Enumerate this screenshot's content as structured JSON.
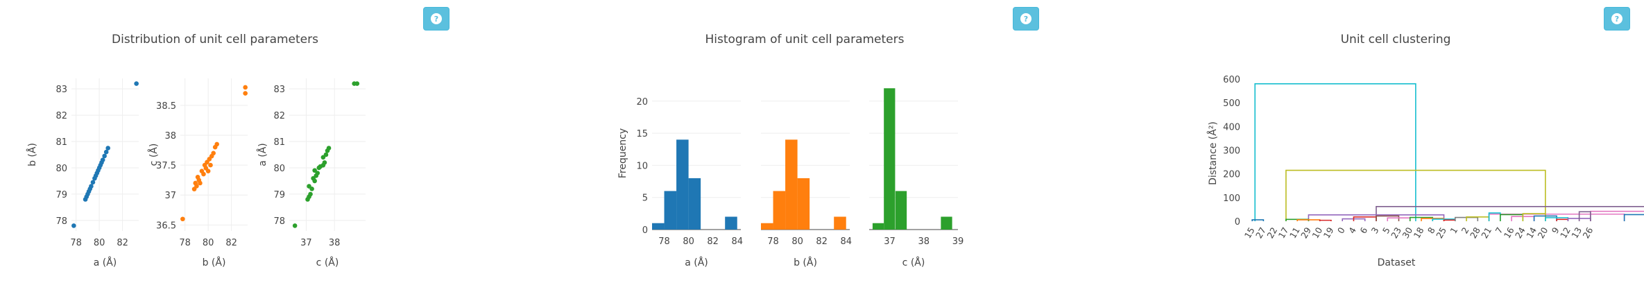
{
  "help_buttons": [
    {
      "icon": "question-circle-icon"
    },
    {
      "icon": "question-circle-icon"
    },
    {
      "icon": "question-circle-icon"
    }
  ],
  "colors": {
    "blue": "#1f77b4",
    "orange": "#ff7f0e",
    "green": "#2ca02c",
    "help_button": "#5bc0de"
  },
  "chart_data": [
    {
      "type": "scatter",
      "title": "Distribution of unit cell parameters",
      "panels": [
        {
          "name": "a-vs-b",
          "color": "#1f77b4",
          "xlabel": "a (Å)",
          "ylabel": "b (Å)",
          "xlim": [
            77.6,
            83.4
          ],
          "ylim": [
            77.6,
            83.4
          ],
          "xticks": [
            78,
            80,
            82
          ],
          "yticks": [
            78,
            79,
            80,
            81,
            82,
            83
          ],
          "points": [
            [
              77.8,
              77.8
            ],
            [
              78.8,
              78.8
            ],
            [
              78.9,
              78.9
            ],
            [
              79.0,
              79.0
            ],
            [
              79.1,
              79.1
            ],
            [
              79.2,
              79.2
            ],
            [
              79.3,
              79.3
            ],
            [
              79.45,
              79.45
            ],
            [
              79.6,
              79.6
            ],
            [
              79.7,
              79.7
            ],
            [
              79.8,
              79.8
            ],
            [
              79.9,
              79.9
            ],
            [
              80.0,
              80.0
            ],
            [
              80.1,
              80.1
            ],
            [
              80.2,
              80.2
            ],
            [
              80.3,
              80.3
            ],
            [
              80.45,
              80.45
            ],
            [
              80.6,
              80.6
            ],
            [
              80.75,
              80.75
            ],
            [
              83.2,
              83.2
            ]
          ]
        },
        {
          "name": "b-vs-c",
          "color": "#ff7f0e",
          "xlabel": "b (Å)",
          "ylabel": "c (Å)",
          "xlim": [
            77.6,
            83.4
          ],
          "ylim": [
            36.4,
            38.95
          ],
          "xticks": [
            78,
            80,
            82
          ],
          "yticks": [
            36.5,
            37,
            37.5,
            38,
            38.5
          ],
          "points": [
            [
              77.8,
              36.6
            ],
            [
              78.8,
              37.1
            ],
            [
              78.9,
              37.2
            ],
            [
              79.0,
              37.15
            ],
            [
              79.1,
              37.3
            ],
            [
              79.2,
              37.25
            ],
            [
              79.3,
              37.2
            ],
            [
              79.45,
              37.4
            ],
            [
              79.6,
              37.35
            ],
            [
              79.7,
              37.5
            ],
            [
              79.8,
              37.45
            ],
            [
              79.9,
              37.55
            ],
            [
              80.0,
              37.4
            ],
            [
              80.1,
              37.6
            ],
            [
              80.2,
              37.5
            ],
            [
              80.3,
              37.65
            ],
            [
              80.45,
              37.7
            ],
            [
              80.6,
              37.8
            ],
            [
              80.75,
              37.85
            ],
            [
              83.2,
              38.7
            ],
            [
              83.2,
              38.8
            ]
          ]
        },
        {
          "name": "c-vs-a",
          "color": "#2ca02c",
          "xlabel": "c (Å)",
          "ylabel": "a (Å)",
          "xlim": [
            36.4,
            39.1
          ],
          "ylim": [
            77.6,
            83.4
          ],
          "xticks": [
            37,
            38
          ],
          "yticks": [
            78,
            79,
            80,
            81,
            82,
            83
          ],
          "points": [
            [
              36.6,
              77.8
            ],
            [
              37.05,
              78.8
            ],
            [
              37.1,
              78.9
            ],
            [
              37.15,
              79.0
            ],
            [
              37.2,
              79.2
            ],
            [
              37.1,
              79.3
            ],
            [
              37.3,
              79.5
            ],
            [
              37.25,
              79.6
            ],
            [
              37.35,
              79.7
            ],
            [
              37.4,
              79.8
            ],
            [
              37.3,
              79.9
            ],
            [
              37.45,
              80.0
            ],
            [
              37.5,
              80.05
            ],
            [
              37.6,
              80.1
            ],
            [
              37.65,
              80.2
            ],
            [
              37.6,
              80.4
            ],
            [
              37.7,
              80.5
            ],
            [
              37.75,
              80.65
            ],
            [
              37.8,
              80.75
            ],
            [
              38.7,
              83.2
            ],
            [
              38.8,
              83.2
            ]
          ]
        }
      ]
    },
    {
      "type": "bar",
      "title": "Histogram of unit cell parameters",
      "ylabel": "Frequency",
      "panels": [
        {
          "name": "a",
          "color": "#1f77b4",
          "xlabel": "a (Å)",
          "xlim": [
            77.0,
            84.3
          ],
          "ylim": [
            0,
            23
          ],
          "xticks": [
            78,
            80,
            82,
            84
          ],
          "yticks": [
            0,
            5,
            10,
            15,
            20
          ],
          "bin_width": 1,
          "bin_starts": [
            77,
            78,
            79,
            80,
            81,
            82,
            83
          ],
          "values": [
            1,
            6,
            14,
            8,
            0,
            0,
            2
          ]
        },
        {
          "name": "b",
          "color": "#ff7f0e",
          "xlabel": "b (Å)",
          "xlim": [
            77.0,
            84.3
          ],
          "ylim": [
            0,
            23
          ],
          "xticks": [
            78,
            80,
            82,
            84
          ],
          "yticks": [
            0,
            5,
            10,
            15,
            20
          ],
          "bin_width": 1,
          "bin_starts": [
            77,
            78,
            79,
            80,
            81,
            82,
            83
          ],
          "values": [
            1,
            6,
            14,
            8,
            0,
            0,
            2
          ]
        },
        {
          "name": "c",
          "color": "#2ca02c",
          "xlabel": "c (Å)",
          "xlim": [
            36.4,
            39.0
          ],
          "ylim": [
            0,
            23
          ],
          "xticks": [
            37,
            38,
            39
          ],
          "yticks": [
            0,
            5,
            10,
            15,
            20
          ],
          "bin_width": 0.33,
          "bin_starts": [
            36.5,
            36.83,
            37.17,
            37.5,
            37.83,
            38.17,
            38.5
          ],
          "values": [
            1,
            22,
            6,
            0,
            0,
            0,
            2
          ]
        }
      ]
    },
    {
      "type": "dendrogram",
      "title": "Unit cell clustering",
      "xlabel": "Dataset",
      "ylabel": "Distance (Å²)",
      "ylim": [
        0,
        600
      ],
      "yticks": [
        0,
        100,
        200,
        300,
        400,
        500,
        600
      ],
      "leaves": [
        "15",
        "27",
        "22",
        "17",
        "11",
        "29",
        "10",
        "19",
        "0",
        "4",
        "6",
        "3",
        "5",
        "23",
        "30",
        "18",
        "8",
        "25",
        "1",
        "2",
        "28",
        "21",
        "7",
        "16",
        "24",
        "14",
        "20",
        "9",
        "12",
        "13",
        "26"
      ],
      "links": [
        {
          "x1": 0.25,
          "x2": 14.5,
          "h": 580,
          "color": "#17becf"
        },
        {
          "x1": 3.0,
          "x2": 26.0,
          "h": 215,
          "color": "#bcbd22"
        },
        {
          "x1": 11.0,
          "x2": 40.0,
          "h": 62,
          "color": "#7f5f8f"
        },
        {
          "x1": 5.0,
          "x2": 17.0,
          "h": 27,
          "color": "#9467bd"
        },
        {
          "x1": 30.0,
          "x2": 50.0,
          "h": 42,
          "color": "#e377c2"
        },
        {
          "x1": 42.0,
          "x2": 53.0,
          "h": 35,
          "color": "#7f5f8f"
        },
        {
          "x1": 21.0,
          "x2": 33.0,
          "h": 30,
          "color": "#e377c2"
        },
        {
          "x1": 33.0,
          "x2": 44.0,
          "h": 28,
          "color": "#1f77b4"
        },
        {
          "x1": 0,
          "x2": 1,
          "h": 6,
          "color": "#1f77b4"
        },
        {
          "x1": 3,
          "x2": 5,
          "h": 8,
          "color": "#2ca02c"
        },
        {
          "x1": 4,
          "x2": 6,
          "h": 6,
          "color": "#ff7f0e"
        },
        {
          "x1": 6,
          "x2": 7,
          "h": 4,
          "color": "#d62728"
        },
        {
          "x1": 8,
          "x2": 10,
          "h": 10,
          "color": "#9467bd"
        },
        {
          "x1": 9,
          "x2": 11,
          "h": 18,
          "color": "#d62728"
        },
        {
          "x1": 11,
          "x2": 13,
          "h": 22,
          "color": "#8c564b"
        },
        {
          "x1": 12,
          "x2": 14,
          "h": 14,
          "color": "#e377c2"
        },
        {
          "x1": 14,
          "x2": 16,
          "h": 16,
          "color": "#2ca02c"
        },
        {
          "x1": 15,
          "x2": 17,
          "h": 12,
          "color": "#ff7f0e"
        },
        {
          "x1": 16,
          "x2": 18,
          "h": 9,
          "color": "#17becf"
        },
        {
          "x1": 17,
          "x2": 18,
          "h": 5,
          "color": "#d62728"
        },
        {
          "x1": 18,
          "x2": 20,
          "h": 16,
          "color": "#7f7f7f"
        },
        {
          "x1": 19,
          "x2": 21,
          "h": 18,
          "color": "#bcbd22"
        },
        {
          "x1": 21,
          "x2": 22,
          "h": 35,
          "color": "#17becf"
        },
        {
          "x1": 22,
          "x2": 24,
          "h": 28,
          "color": "#2ca02c"
        },
        {
          "x1": 23,
          "x2": 25,
          "h": 20,
          "color": "#e377c2"
        },
        {
          "x1": 24,
          "x2": 26,
          "h": 32,
          "color": "#bcbd22"
        },
        {
          "x1": 25,
          "x2": 27,
          "h": 22,
          "color": "#1f77b4"
        },
        {
          "x1": 26,
          "x2": 28,
          "h": 15,
          "color": "#17becf"
        },
        {
          "x1": 27,
          "x2": 28,
          "h": 8,
          "color": "#d62728"
        },
        {
          "x1": 28,
          "x2": 30,
          "h": 12,
          "color": "#9467bd"
        },
        {
          "x1": 29,
          "x2": 30,
          "h": 40,
          "color": "#7f5f8f"
        }
      ]
    }
  ]
}
